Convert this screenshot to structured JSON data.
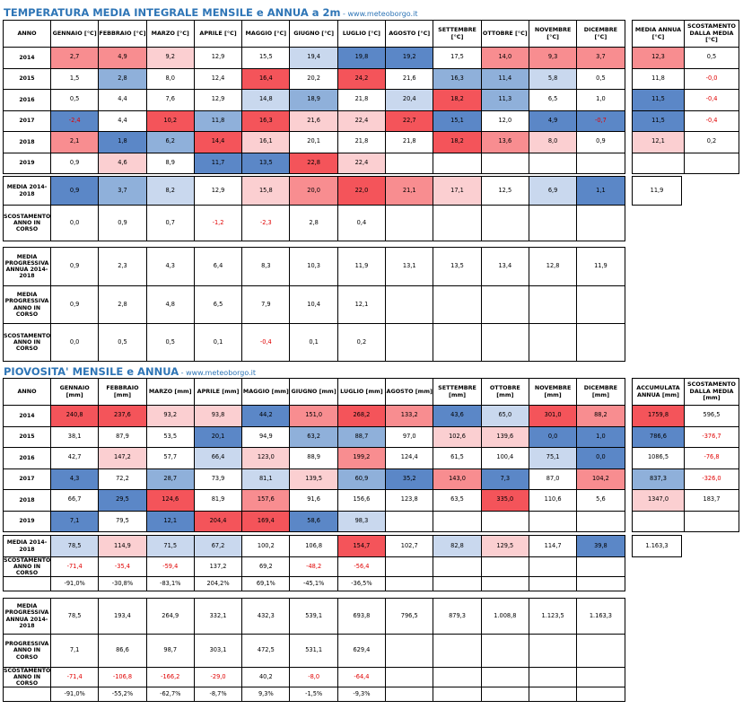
{
  "temperature": {
    "title": "TEMPERATURA MEDIA INTEGRALE MENSILE e ANNUA a 2m",
    "site": " - www.meteoborgo.it",
    "header": [
      "ANNO",
      "GENNAIO [°C]",
      "FEBBRAIO [°C]",
      "MARZO [°C]",
      "APRILE [°C]",
      "MAGGIO [°C]",
      "GIUGNO [°C]",
      "LUGLIO [°C]",
      "AGOSTO [°C]",
      "SETTEMBRE [°C]",
      "OTTOBRE [°C]",
      "NOVEMBRE [°C]",
      "DICEMBRE [°C]"
    ],
    "annual_header": [
      "MEDIA ANNUA [°C]",
      "SCOSTAMENTO DALLA MEDIA [°C]"
    ],
    "rows": [
      {
        "year": "2014",
        "v": [
          "2,7",
          "4,9",
          "9,2",
          "12,9",
          "15,5",
          "19,4",
          "19,8",
          "19,2",
          "17,5",
          "14,0",
          "9,3",
          "3,7"
        ],
        "c": [
          "p2",
          "p2",
          "p1",
          "",
          "",
          "b1",
          "b3",
          "b3",
          "",
          "p2",
          "p2",
          "p2"
        ],
        "annual": [
          "12,3",
          "0,5"
        ],
        "ac": [
          "p2",
          ""
        ]
      },
      {
        "year": "2015",
        "v": [
          "1,5",
          "2,8",
          "8,0",
          "12,4",
          "16,4",
          "20,2",
          "24,2",
          "21,6",
          "16,3",
          "11,4",
          "5,8",
          "0,5"
        ],
        "c": [
          "",
          "b2",
          "",
          "",
          "p3",
          "",
          "p3",
          "",
          "b2",
          "b2",
          "b1",
          ""
        ],
        "annual": [
          "11,8",
          "-0,0"
        ],
        "ac": [
          "",
          ""
        ]
      },
      {
        "year": "2016",
        "v": [
          "0,5",
          "4,4",
          "7,6",
          "12,9",
          "14,8",
          "18,9",
          "21,8",
          "20,4",
          "18,2",
          "11,3",
          "6,5",
          "1,0"
        ],
        "c": [
          "",
          "",
          "",
          "",
          "b1",
          "b2",
          "",
          "b1",
          "p3",
          "b2",
          "",
          ""
        ],
        "annual": [
          "11,5",
          "-0,4"
        ],
        "ac": [
          "b3",
          ""
        ]
      },
      {
        "year": "2017",
        "v": [
          "-2,4",
          "4,4",
          "10,2",
          "11,8",
          "16,3",
          "21,6",
          "22,4",
          "22,7",
          "15,1",
          "12,0",
          "4,9",
          "-0,7"
        ],
        "c": [
          "b3",
          "",
          "p3",
          "b2",
          "p3",
          "p1",
          "p1",
          "p3",
          "b3",
          "",
          "b3",
          "b3"
        ],
        "annual": [
          "11,5",
          "-0,4"
        ],
        "ac": [
          "b3",
          ""
        ]
      },
      {
        "year": "2018",
        "v": [
          "2,1",
          "1,8",
          "6,2",
          "14,4",
          "16,1",
          "20,1",
          "21,8",
          "21,8",
          "18,2",
          "13,6",
          "8,0",
          "0,9"
        ],
        "c": [
          "p2",
          "b3",
          "b2",
          "p3",
          "p1",
          "",
          "",
          "",
          "p3",
          "p2",
          "p1",
          ""
        ],
        "annual": [
          "12,1",
          "0,2"
        ],
        "ac": [
          "p1",
          ""
        ]
      },
      {
        "year": "2019",
        "v": [
          "0,9",
          "4,6",
          "8,9",
          "11,7",
          "13,5",
          "22,8",
          "22,4",
          "",
          "",
          "",
          "",
          ""
        ],
        "c": [
          "",
          "p1",
          "",
          "b3",
          "b3",
          "p3",
          "p1",
          "",
          "",
          "",
          "",
          ""
        ],
        "annual": [
          "",
          ""
        ],
        "ac": [
          "",
          ""
        ]
      }
    ],
    "media": {
      "label": "MEDIA 2014-2018",
      "v": [
        "0,9",
        "3,7",
        "8,2",
        "12,9",
        "15,8",
        "20,0",
        "22,0",
        "21,1",
        "17,1",
        "12,5",
        "6,9",
        "1,1"
      ],
      "c": [
        "b3",
        "b2",
        "b1",
        "",
        "p1",
        "p2",
        "p3",
        "p2",
        "p1",
        "",
        "b1",
        "b3"
      ],
      "annual": "11,9"
    },
    "scost": {
      "label": "SCOSTAMENTO ANNO IN CORSO",
      "v": [
        "0,0",
        "0,9",
        "0,7",
        "-1,2",
        "-2,3",
        "2,8",
        "0,4",
        "",
        "",
        "",
        "",
        ""
      ]
    },
    "prog": [
      {
        "label": "MEDIA PROGRESSIVA ANNUA 2014-2018",
        "v": [
          "0,9",
          "2,3",
          "4,3",
          "6,4",
          "8,3",
          "10,3",
          "11,9",
          "13,1",
          "13,5",
          "13,4",
          "12,8",
          "11,9"
        ]
      },
      {
        "label": "MEDIA PROGRESSIVA ANNO IN CORSO",
        "v": [
          "0,9",
          "2,8",
          "4,8",
          "6,5",
          "7,9",
          "10,4",
          "12,1",
          "",
          "",
          "",
          "",
          ""
        ]
      },
      {
        "label": "SCOSTAMENTO ANNO IN CORSO",
        "v": [
          "0,0",
          "0,5",
          "0,5",
          "0,1",
          "-0,4",
          "0,1",
          "0,2",
          "",
          "",
          "",
          "",
          ""
        ]
      }
    ]
  },
  "rain": {
    "title": "PIOVOSITA' MENSILE e ANNUA",
    "site": " - www.meteoborgo.it",
    "header": [
      "ANNO",
      "GENNAIO [mm]",
      "FEBBRAIO [mm]",
      "MARZO [mm]",
      "APRILE [mm]",
      "MAGGIO [mm]",
      "GIUGNO [mm]",
      "LUGLIO [mm]",
      "AGOSTO [mm]",
      "SETTEMBRE [mm]",
      "OTTOBRE [mm]",
      "NOVEMBRE [mm]",
      "DICEMBRE [mm]"
    ],
    "annual_header": [
      "ACCUMULATA ANNUA [mm]",
      "SCOSTAMENTO DALLA MEDIA [mm]"
    ],
    "rows": [
      {
        "year": "2014",
        "v": [
          "240,8",
          "237,6",
          "93,2",
          "93,8",
          "44,2",
          "151,0",
          "268,2",
          "133,2",
          "43,6",
          "65,0",
          "301,0",
          "88,2"
        ],
        "c": [
          "p3",
          "p3",
          "p1",
          "p1",
          "b3",
          "p2",
          "p3",
          "p2",
          "b3",
          "b1",
          "p3",
          "p2"
        ],
        "annual": [
          "1759,8",
          "596,5"
        ],
        "ac": [
          "p3",
          ""
        ]
      },
      {
        "year": "2015",
        "v": [
          "38,1",
          "87,9",
          "53,5",
          "20,1",
          "94,9",
          "63,2",
          "88,7",
          "97,0",
          "102,6",
          "139,6",
          "0,0",
          "1,0"
        ],
        "c": [
          "",
          "",
          "",
          "b3",
          "",
          "b2",
          "b2",
          "",
          "p1",
          "p1",
          "b3",
          "b3"
        ],
        "annual": [
          "786,6",
          "-376,7"
        ],
        "ac": [
          "b3",
          ""
        ]
      },
      {
        "year": "2016",
        "v": [
          "42,7",
          "147,2",
          "57,7",
          "66,4",
          "123,0",
          "88,9",
          "199,2",
          "124,4",
          "61,5",
          "100,4",
          "75,1",
          "0,0"
        ],
        "c": [
          "",
          "p1",
          "",
          "b1",
          "p1",
          "",
          "p2",
          "",
          "",
          "",
          "b1",
          "b3"
        ],
        "annual": [
          "1086,5",
          "-76,8"
        ],
        "ac": [
          "",
          ""
        ]
      },
      {
        "year": "2017",
        "v": [
          "4,3",
          "72,2",
          "28,7",
          "73,9",
          "81,1",
          "139,5",
          "60,9",
          "35,2",
          "143,0",
          "7,3",
          "87,0",
          "104,2"
        ],
        "c": [
          "b3",
          "",
          "b2",
          "",
          "b1",
          "p1",
          "b2",
          "b3",
          "p2",
          "b3",
          "",
          "p2"
        ],
        "annual": [
          "837,3",
          "-326,0"
        ],
        "ac": [
          "b2",
          ""
        ]
      },
      {
        "year": "2018",
        "v": [
          "66,7",
          "29,5",
          "124,6",
          "81,9",
          "157,6",
          "91,6",
          "156,6",
          "123,8",
          "63,5",
          "335,0",
          "110,6",
          "5,6"
        ],
        "c": [
          "",
          "b3",
          "p3",
          "",
          "p2",
          "",
          "",
          "",
          "",
          "p3",
          "",
          ""
        ],
        "annual": [
          "1347,0",
          "183,7"
        ],
        "ac": [
          "p1",
          ""
        ]
      },
      {
        "year": "2019",
        "v": [
          "7,1",
          "79,5",
          "12,1",
          "204,4",
          "169,4",
          "58,6",
          "98,3",
          "",
          "",
          "",
          "",
          ""
        ],
        "c": [
          "b3",
          "",
          "b3",
          "p3",
          "p3",
          "b3",
          "b1",
          "",
          "",
          "",
          "",
          ""
        ],
        "annual": [
          "",
          ""
        ],
        "ac": [
          "",
          ""
        ]
      }
    ],
    "media": {
      "label": "MEDIA 2014-2018",
      "v": [
        "78,5",
        "114,9",
        "71,5",
        "67,2",
        "100,2",
        "106,8",
        "154,7",
        "102,7",
        "82,8",
        "129,5",
        "114,7",
        "39,8"
      ],
      "c": [
        "b1",
        "p1",
        "b1",
        "b1",
        "",
        "",
        "p3",
        "",
        "b1",
        "p1",
        "",
        "b3"
      ],
      "annual": "1.163,3"
    },
    "scost": {
      "label": "SCOSTAMENTO ANNO IN CORSO",
      "v": [
        "-71,4",
        "-35,4",
        "-59,4",
        "137,2",
        "69,2",
        "-48,2",
        "-56,4",
        "",
        "",
        "",
        "",
        ""
      ],
      "pct": [
        "-91,0%",
        "-30,8%",
        "-83,1%",
        "204,2%",
        "69,1%",
        "-45,1%",
        "-36,5%",
        "",
        "",
        "",
        "",
        ""
      ]
    },
    "prog": [
      {
        "label": "MEDIA PROGRESSIVA ANNUA 2014-2018",
        "v": [
          "78,5",
          "193,4",
          "264,9",
          "332,1",
          "432,3",
          "539,1",
          "693,8",
          "796,5",
          "879,3",
          "1.008,8",
          "1.123,5",
          "1.163,3"
        ]
      },
      {
        "label": "PROGRESSIVA ANNO IN CORSO",
        "v": [
          "7,1",
          "86,6",
          "98,7",
          "303,1",
          "472,5",
          "531,1",
          "629,4",
          "",
          "",
          "",
          "",
          ""
        ]
      },
      {
        "label": "SCOSTAMENTO ANNO IN CORSO",
        "v": [
          "-71,4",
          "-106,8",
          "-166,2",
          "-29,0",
          "40,2",
          "-8,0",
          "-64,4",
          "",
          "",
          "",
          "",
          ""
        ],
        "pct": [
          "-91,0%",
          "-55,2%",
          "-62,7%",
          "-8,7%",
          "9,3%",
          "-1,5%",
          "-9,3%",
          "",
          "",
          "",
          "",
          ""
        ]
      }
    ]
  }
}
